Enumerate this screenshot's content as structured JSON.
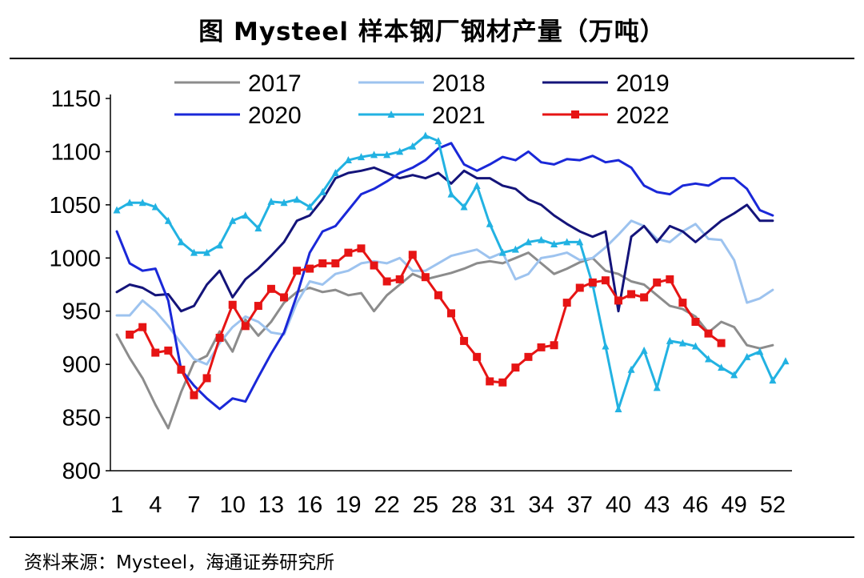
{
  "header": {
    "title": "图 Mysteel 样本钢厂钢材产量（万吨）"
  },
  "footer": {
    "source": "资料来源：Mysteel，海通证券研究所"
  },
  "chart_data": {
    "type": "line",
    "title": "图 Mysteel 样本钢厂钢材产量（万吨）",
    "xlabel": "",
    "ylabel": "",
    "xlim": [
      1,
      53
    ],
    "ylim": [
      800,
      1150
    ],
    "yticks": [
      800,
      850,
      900,
      950,
      1000,
      1050,
      1100,
      1150
    ],
    "xticks": [
      1,
      4,
      7,
      10,
      13,
      16,
      19,
      22,
      25,
      28,
      31,
      34,
      37,
      40,
      43,
      46,
      49,
      52
    ],
    "legend_position": "top",
    "series": [
      {
        "name": "2017",
        "color": "#8c8c8c",
        "marker": "none",
        "width": 3,
        "x": [
          1,
          2,
          3,
          4,
          5,
          6,
          7,
          8,
          9,
          10,
          11,
          12,
          13,
          14,
          15,
          16,
          17,
          18,
          19,
          20,
          21,
          22,
          23,
          24,
          25,
          26,
          27,
          28,
          29,
          30,
          31,
          32,
          33,
          34,
          35,
          36,
          37,
          38,
          39,
          40,
          41,
          42,
          43,
          44,
          45,
          46,
          47,
          48,
          49,
          50,
          51,
          52
        ],
        "values": [
          928,
          906,
          887,
          862,
          840,
          874,
          902,
          908,
          931,
          912,
          942,
          927,
          940,
          958,
          968,
          972,
          968,
          970,
          965,
          967,
          950,
          965,
          975,
          985,
          980,
          983,
          986,
          990,
          995,
          997,
          995,
          1000,
          1005,
          995,
          985,
          990,
          996,
          1000,
          988,
          985,
          978,
          975,
          965,
          955,
          952,
          945,
          930,
          940,
          935,
          918,
          915,
          918
        ]
      },
      {
        "name": "2018",
        "color": "#9dc3ef",
        "marker": "none",
        "width": 3,
        "x": [
          1,
          2,
          3,
          4,
          5,
          6,
          7,
          8,
          9,
          10,
          11,
          12,
          13,
          14,
          15,
          16,
          17,
          18,
          19,
          20,
          21,
          22,
          23,
          24,
          25,
          26,
          27,
          28,
          29,
          30,
          31,
          32,
          33,
          34,
          35,
          36,
          37,
          38,
          39,
          40,
          41,
          42,
          43,
          44,
          45,
          46,
          47,
          48,
          49,
          50,
          51,
          52
        ],
        "values": [
          946,
          946,
          960,
          950,
          936,
          920,
          905,
          900,
          920,
          935,
          945,
          940,
          930,
          928,
          958,
          978,
          975,
          985,
          988,
          995,
          997,
          995,
          1000,
          988,
          988,
          995,
          1002,
          1005,
          1008,
          1000,
          1005,
          980,
          985,
          1000,
          1002,
          1005,
          998,
          1000,
          1010,
          1022,
          1035,
          1030,
          1018,
          1015,
          1025,
          1032,
          1018,
          1017,
          998,
          958,
          962,
          970
        ]
      },
      {
        "name": "2019",
        "color": "#14147a",
        "marker": "none",
        "width": 3,
        "x": [
          1,
          2,
          3,
          4,
          5,
          6,
          7,
          8,
          9,
          10,
          11,
          12,
          13,
          14,
          15,
          16,
          17,
          18,
          19,
          20,
          21,
          22,
          23,
          24,
          25,
          26,
          27,
          28,
          29,
          30,
          31,
          32,
          33,
          34,
          35,
          36,
          37,
          38,
          39,
          40,
          41,
          42,
          43,
          44,
          45,
          46,
          47,
          48,
          49,
          50,
          51,
          52
        ],
        "values": [
          968,
          975,
          972,
          965,
          966,
          950,
          955,
          975,
          988,
          963,
          980,
          990,
          1002,
          1015,
          1035,
          1040,
          1055,
          1075,
          1080,
          1082,
          1085,
          1080,
          1075,
          1078,
          1075,
          1080,
          1070,
          1082,
          1075,
          1075,
          1068,
          1065,
          1055,
          1050,
          1040,
          1032,
          1025,
          1020,
          1025,
          950,
          1020,
          1030,
          1015,
          1030,
          1025,
          1015,
          1025,
          1035,
          1042,
          1050,
          1035,
          1035
        ]
      },
      {
        "name": "2020",
        "color": "#1a28d8",
        "marker": "none",
        "width": 3,
        "x": [
          1,
          2,
          3,
          4,
          5,
          6,
          7,
          8,
          9,
          10,
          11,
          12,
          13,
          14,
          15,
          16,
          17,
          18,
          19,
          20,
          21,
          22,
          23,
          24,
          25,
          26,
          27,
          28,
          29,
          30,
          31,
          32,
          33,
          34,
          35,
          36,
          37,
          38,
          39,
          40,
          41,
          42,
          43,
          44,
          45,
          46,
          47,
          48,
          49,
          50,
          51,
          52
        ],
        "values": [
          1025,
          995,
          988,
          990,
          960,
          895,
          880,
          868,
          858,
          868,
          865,
          888,
          910,
          930,
          965,
          1005,
          1025,
          1030,
          1045,
          1060,
          1065,
          1072,
          1080,
          1085,
          1092,
          1103,
          1108,
          1088,
          1082,
          1088,
          1095,
          1092,
          1100,
          1090,
          1088,
          1093,
          1092,
          1096,
          1090,
          1092,
          1085,
          1068,
          1062,
          1060,
          1068,
          1070,
          1068,
          1075,
          1075,
          1065,
          1045,
          1040
        ]
      },
      {
        "name": "2021",
        "color": "#22b2e2",
        "marker": "triangle",
        "width": 3,
        "x": [
          1,
          2,
          3,
          4,
          5,
          6,
          7,
          8,
          9,
          10,
          11,
          12,
          13,
          14,
          15,
          16,
          17,
          18,
          19,
          20,
          21,
          22,
          23,
          24,
          25,
          26,
          27,
          28,
          29,
          30,
          31,
          32,
          33,
          34,
          35,
          36,
          37,
          38,
          39,
          40,
          41,
          42,
          43,
          44,
          45,
          46,
          47,
          48,
          49,
          50,
          51,
          52,
          53
        ],
        "values": [
          1045,
          1052,
          1052,
          1048,
          1035,
          1015,
          1005,
          1005,
          1012,
          1035,
          1040,
          1028,
          1053,
          1052,
          1055,
          1048,
          1062,
          1080,
          1092,
          1095,
          1097,
          1097,
          1100,
          1105,
          1115,
          1110,
          1060,
          1048,
          1068,
          1032,
          1005,
          1008,
          1015,
          1017,
          1013,
          1015,
          1015,
          975,
          917,
          858,
          895,
          913,
          878,
          922,
          920,
          917,
          905,
          897,
          890,
          907,
          912,
          885,
          903
        ]
      },
      {
        "name": "2022",
        "color": "#e61414",
        "marker": "square",
        "width": 3,
        "x": [
          2,
          3,
          4,
          5,
          6,
          7,
          8,
          9,
          10,
          11,
          12,
          13,
          14,
          15,
          16,
          17,
          18,
          19,
          20,
          21,
          22,
          23,
          24,
          25,
          26,
          27,
          28,
          29,
          30,
          31,
          32,
          33,
          34,
          35,
          36,
          37,
          38,
          39,
          40,
          41,
          42,
          43,
          44,
          45,
          46,
          47,
          48
        ],
        "values": [
          928,
          935,
          911,
          913,
          895,
          871,
          887,
          925,
          956,
          936,
          955,
          971,
          963,
          988,
          990,
          995,
          995,
          1005,
          1009,
          993,
          978,
          980,
          1003,
          982,
          965,
          948,
          922,
          907,
          884,
          883,
          897,
          907,
          916,
          918,
          958,
          972,
          977,
          979,
          960,
          966,
          963,
          977,
          980,
          958,
          940,
          929,
          920
        ]
      }
    ]
  }
}
